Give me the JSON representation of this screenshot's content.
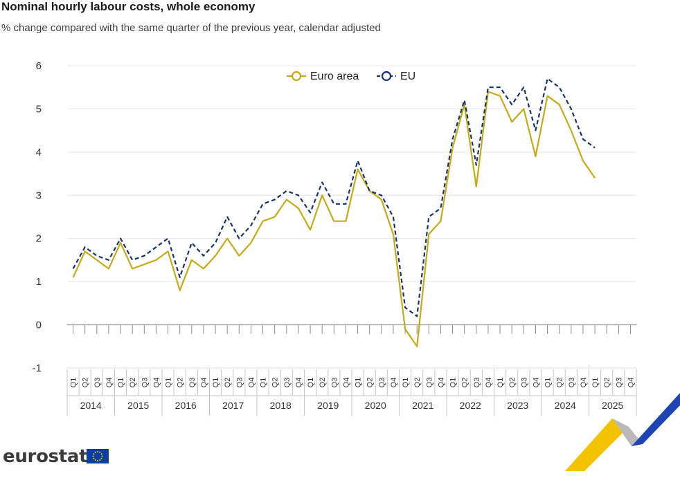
{
  "header": {
    "title": "Nominal hourly labour costs, whole economy",
    "subtitle": "% change compared with the same quarter of the previous year, calendar adjusted"
  },
  "footer": {
    "brand": "eurostat",
    "flag_icon": "eu-flag-icon"
  },
  "colors": {
    "euro_area": "#c8a915",
    "eu": "#17346e",
    "grid": "#e3e3e3",
    "axis": "#888888",
    "deco_yellow": "#f3c301",
    "deco_blue": "#1f45b3",
    "deco_grey": "#b9b9b9"
  },
  "chart_data": {
    "type": "line",
    "title": "Nominal hourly labour costs, whole economy",
    "subtitle": "% change compared with the same quarter of the previous year, calendar adjusted",
    "ylim": [
      -1,
      6
    ],
    "yticks": [
      "-1",
      "0",
      "1",
      "2",
      "3",
      "4",
      "5",
      "6"
    ],
    "grid": true,
    "legend_position": "top-center",
    "quarters": [
      "Q1",
      "Q2",
      "Q3",
      "Q4"
    ],
    "years": [
      "2014",
      "2015",
      "2016",
      "2017",
      "2018",
      "2019",
      "2020",
      "2021",
      "2022",
      "2023",
      "2024",
      "2025"
    ],
    "series": [
      {
        "name": "Euro area",
        "style": "solid",
        "values": [
          1.1,
          1.7,
          1.5,
          1.3,
          1.9,
          1.3,
          1.4,
          1.5,
          1.7,
          0.8,
          1.5,
          1.3,
          1.6,
          2.0,
          1.6,
          1.9,
          2.4,
          2.5,
          2.9,
          2.7,
          2.2,
          3.0,
          2.4,
          2.4,
          3.6,
          3.1,
          2.9,
          2.1,
          -0.1,
          -0.5,
          2.1,
          2.4,
          4.1,
          5.1,
          3.2,
          5.4,
          5.3,
          4.7,
          5.0,
          3.9,
          5.3,
          5.1,
          4.5,
          3.8,
          3.4,
          null,
          null,
          null
        ]
      },
      {
        "name": "EU",
        "style": "dashed",
        "values": [
          1.3,
          1.8,
          1.6,
          1.5,
          2.0,
          1.5,
          1.6,
          1.8,
          2.0,
          1.1,
          1.9,
          1.6,
          1.9,
          2.5,
          2.0,
          2.3,
          2.8,
          2.9,
          3.1,
          3.0,
          2.6,
          3.3,
          2.8,
          2.8,
          3.8,
          3.1,
          3.0,
          2.5,
          0.4,
          0.2,
          2.5,
          2.7,
          4.3,
          5.2,
          3.7,
          5.5,
          5.5,
          5.1,
          5.5,
          4.5,
          5.7,
          5.5,
          5.0,
          4.3,
          4.1,
          null,
          null,
          null
        ]
      }
    ]
  }
}
